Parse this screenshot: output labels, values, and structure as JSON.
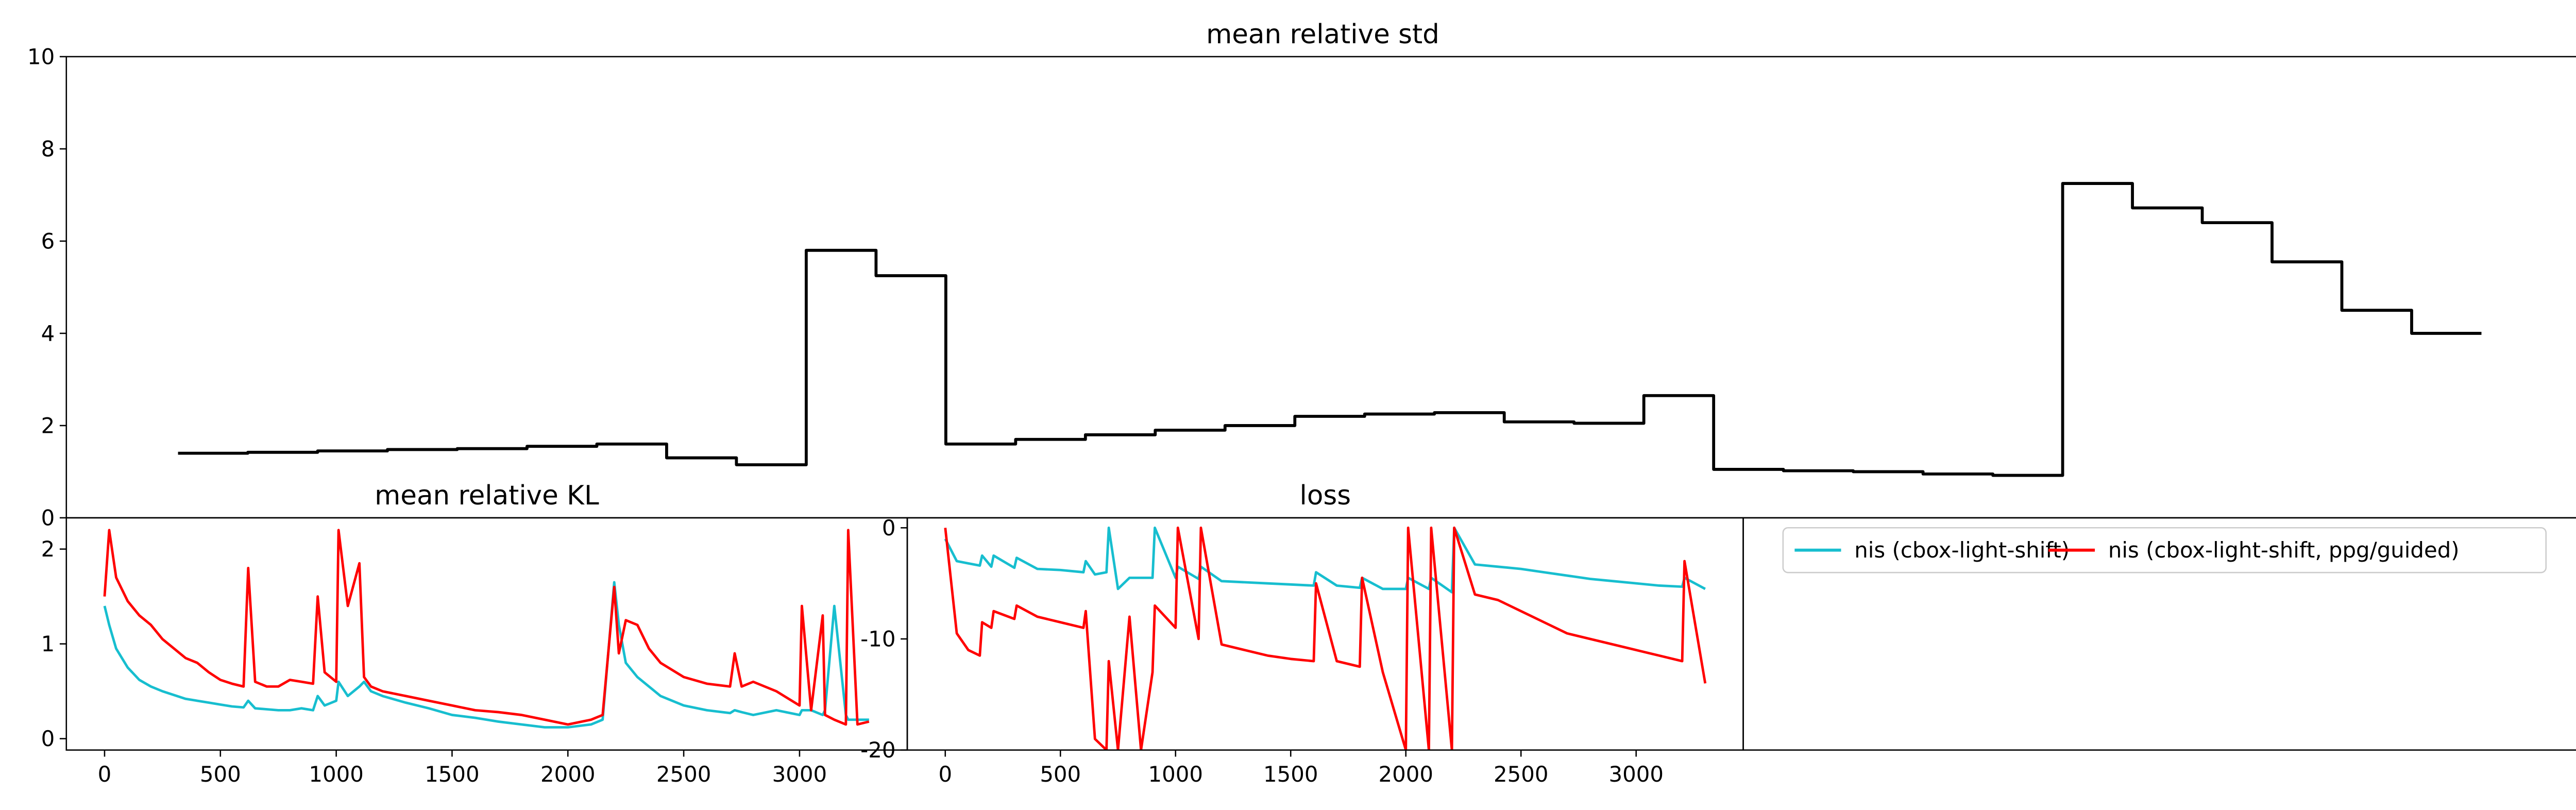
{
  "chart_data": [
    {
      "type": "step",
      "title": "mean relative std",
      "x": [
        0,
        1,
        2,
        3,
        4,
        5,
        6,
        7,
        8,
        9,
        10,
        11,
        12,
        13,
        14,
        15,
        16,
        17,
        18,
        19,
        20,
        21,
        22,
        23,
        24,
        25,
        26,
        27,
        28,
        29,
        30,
        31,
        32,
        33
      ],
      "series": [
        {
          "color": "#000000",
          "values": [
            1.4,
            1.42,
            1.45,
            1.48,
            1.5,
            1.55,
            1.6,
            1.3,
            1.15,
            5.8,
            5.25,
            1.6,
            1.7,
            1.8,
            1.9,
            2.0,
            2.2,
            2.25,
            2.28,
            2.08,
            2.05,
            2.65,
            1.05,
            1.02,
            1.0,
            0.95,
            0.92,
            7.25,
            6.72,
            6.4,
            5.55,
            4.5,
            4.0,
            4.0
          ]
        }
      ],
      "xlim": [
        -1.6,
        34.4
      ],
      "ylim": [
        0,
        10
      ],
      "yticks": [
        0,
        2,
        4,
        6,
        8,
        10
      ]
    },
    {
      "type": "line",
      "title": "mean relative KL",
      "x": [
        0,
        20,
        50,
        100,
        150,
        200,
        250,
        300,
        350,
        400,
        450,
        500,
        550,
        600,
        620,
        650,
        700,
        750,
        800,
        850,
        900,
        920,
        950,
        1000,
        1010,
        1050,
        1100,
        1120,
        1150,
        1200,
        1300,
        1400,
        1500,
        1600,
        1700,
        1800,
        1900,
        2000,
        2100,
        2150,
        2200,
        2220,
        2250,
        2300,
        2350,
        2400,
        2500,
        2600,
        2700,
        2720,
        2750,
        2800,
        2900,
        3000,
        3010,
        3050,
        3100,
        3110,
        3150,
        3200,
        3210,
        3250,
        3300
      ],
      "series": [
        {
          "color": "#17becf",
          "values": [
            1.4,
            1.2,
            0.95,
            0.75,
            0.62,
            0.55,
            0.5,
            0.46,
            0.42,
            0.4,
            0.38,
            0.36,
            0.34,
            0.33,
            0.4,
            0.32,
            0.31,
            0.3,
            0.3,
            0.32,
            0.3,
            0.45,
            0.35,
            0.4,
            0.6,
            0.45,
            0.55,
            0.6,
            0.5,
            0.45,
            0.38,
            0.32,
            0.25,
            0.22,
            0.18,
            0.15,
            0.12,
            0.12,
            0.15,
            0.2,
            1.65,
            1.2,
            0.8,
            0.65,
            0.55,
            0.45,
            0.35,
            0.3,
            0.27,
            0.3,
            0.28,
            0.25,
            0.3,
            0.25,
            0.3,
            0.3,
            0.25,
            0.3,
            1.4,
            0.25,
            0.2,
            0.2,
            0.2
          ]
        },
        {
          "color": "#ff0000",
          "values": [
            1.5,
            2.2,
            1.7,
            1.45,
            1.3,
            1.2,
            1.05,
            0.95,
            0.85,
            0.8,
            0.7,
            0.62,
            0.58,
            0.55,
            1.8,
            0.6,
            0.55,
            0.55,
            0.62,
            0.6,
            0.58,
            1.5,
            0.7,
            0.6,
            2.2,
            1.4,
            1.85,
            0.65,
            0.55,
            0.5,
            0.45,
            0.4,
            0.35,
            0.3,
            0.28,
            0.25,
            0.2,
            0.15,
            0.2,
            0.25,
            1.6,
            0.9,
            1.25,
            1.2,
            0.95,
            0.8,
            0.65,
            0.58,
            0.55,
            0.9,
            0.55,
            0.6,
            0.5,
            0.35,
            1.4,
            0.3,
            1.3,
            0.25,
            0.2,
            0.15,
            2.2,
            0.15,
            0.18
          ]
        }
      ],
      "xlim": [
        -165,
        3465
      ],
      "xticks": [
        0,
        500,
        1000,
        1500,
        2000,
        2500,
        3000
      ],
      "ylim": [
        -0.12,
        2.33
      ],
      "yticks": [
        0,
        1,
        2
      ]
    },
    {
      "type": "line",
      "title": "loss",
      "x": [
        0,
        50,
        100,
        150,
        160,
        200,
        210,
        300,
        310,
        400,
        500,
        600,
        610,
        650,
        700,
        710,
        750,
        800,
        850,
        900,
        910,
        1000,
        1010,
        1100,
        1110,
        1200,
        1300,
        1400,
        1500,
        1600,
        1610,
        1700,
        1800,
        1810,
        1900,
        2000,
        2010,
        2100,
        2110,
        2200,
        2210,
        2300,
        2400,
        2500,
        2600,
        2700,
        2800,
        2900,
        3000,
        3100,
        3200,
        3210,
        3300
      ],
      "series": [
        {
          "color": "#17becf",
          "values": [
            -1.0,
            -3.0,
            -3.2,
            -3.4,
            -2.5,
            -3.5,
            -2.5,
            -3.6,
            -2.7,
            -3.7,
            -3.8,
            -4.0,
            -3.0,
            -4.2,
            -4.0,
            0.0,
            -5.5,
            -4.5,
            -4.5,
            -4.5,
            0.0,
            -4.5,
            -3.5,
            -4.6,
            -3.5,
            -4.8,
            -4.9,
            -5.0,
            -5.1,
            -5.2,
            -4.0,
            -5.2,
            -5.4,
            -4.5,
            -5.5,
            -5.5,
            -4.5,
            -5.5,
            -4.5,
            -5.8,
            0.0,
            -3.3,
            -3.5,
            -3.7,
            -4.0,
            -4.3,
            -4.6,
            -4.8,
            -5.0,
            -5.2,
            -5.3,
            -4.5,
            -5.5
          ]
        },
        {
          "color": "#ff0000",
          "values": [
            0.0,
            -9.5,
            -11.0,
            -11.5,
            -8.5,
            -9.0,
            -7.5,
            -8.2,
            -7.0,
            -8.0,
            -8.5,
            -9.0,
            -7.5,
            -19.0,
            -20.0,
            -12.0,
            -20.0,
            -8.0,
            -20.0,
            -13.0,
            -7.0,
            -9.0,
            0.0,
            -10.0,
            0.0,
            -10.5,
            -11.0,
            -11.5,
            -11.8,
            -12.0,
            -5.0,
            -12.0,
            -12.5,
            -4.5,
            -13.0,
            -20.0,
            0.0,
            -20.0,
            0.0,
            -20.0,
            0.0,
            -6.0,
            -6.5,
            -7.5,
            -8.5,
            -9.5,
            -10.0,
            -10.5,
            -11.0,
            -11.5,
            -12.0,
            -3.0,
            -14.0
          ]
        }
      ],
      "xlim": [
        -165,
        3465
      ],
      "xticks": [
        0,
        500,
        1000,
        1500,
        2000,
        2500,
        3000
      ],
      "ylim": [
        -20,
        0.9
      ],
      "yticks": [
        0,
        -10,
        -20
      ]
    },
    {
      "type": "legend",
      "legend": [
        {
          "name": "nis (cbox-light-shift)",
          "color": "#17becf"
        },
        {
          "name": "nis (cbox-light-shift, ppg/guided)",
          "color": "#ff0000"
        }
      ],
      "legend_position": "upper left"
    }
  ]
}
